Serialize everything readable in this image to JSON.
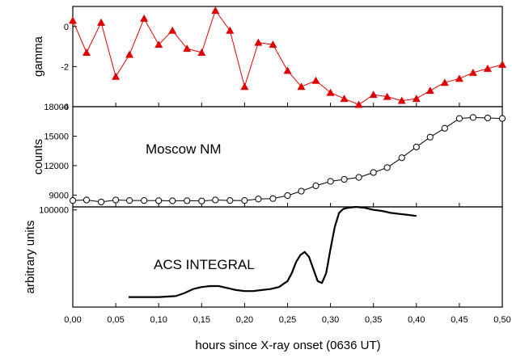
{
  "xlabel": "hours since X-ray onset (0636 UT)",
  "x_ticks": [
    "0,00",
    "0,05",
    "0,10",
    "0,15",
    "0,20",
    "0,25",
    "0,30",
    "0,35",
    "0,40",
    "0,45",
    "0,50"
  ],
  "chart_data": [
    {
      "type": "line",
      "id": "gamma",
      "ylabel": "gamma",
      "xlim": [
        0,
        0.5
      ],
      "ylim": [
        -4,
        1
      ],
      "y_ticks": [
        "0",
        "-2",
        "-4"
      ],
      "marker": "triangle",
      "color": "#e00000",
      "x": [
        0.0,
        0.016,
        0.033,
        0.05,
        0.066,
        0.083,
        0.1,
        0.116,
        0.133,
        0.15,
        0.166,
        0.183,
        0.2,
        0.216,
        0.233,
        0.25,
        0.266,
        0.283,
        0.3,
        0.316,
        0.333,
        0.35,
        0.366,
        0.383,
        0.4,
        0.416,
        0.433,
        0.45,
        0.466,
        0.483,
        0.5
      ],
      "y": [
        0.3,
        -1.3,
        0.2,
        -2.5,
        -1.4,
        0.4,
        -0.9,
        -0.2,
        -1.1,
        -1.3,
        0.8,
        -0.2,
        -3.0,
        -0.8,
        -0.9,
        -2.2,
        -3.0,
        -2.7,
        -3.3,
        -3.6,
        -3.9,
        -3.4,
        -3.5,
        -3.7,
        -3.6,
        -3.2,
        -2.8,
        -2.6,
        -2.3,
        -2.1,
        -1.9
      ]
    },
    {
      "type": "line",
      "id": "counts",
      "ylabel": "counts",
      "annotation": "Moscow NM",
      "xlim": [
        0,
        0.5
      ],
      "ylim": [
        7800,
        18000
      ],
      "y_ticks": [
        "9000",
        "12000",
        "15000",
        "18000"
      ],
      "y_tick_values": [
        9000,
        12000,
        15000,
        18000
      ],
      "marker": "open-circle",
      "color": "#000000",
      "x": [
        0.0,
        0.016,
        0.033,
        0.05,
        0.066,
        0.083,
        0.1,
        0.116,
        0.133,
        0.15,
        0.166,
        0.183,
        0.2,
        0.216,
        0.233,
        0.25,
        0.266,
        0.283,
        0.3,
        0.316,
        0.333,
        0.35,
        0.366,
        0.383,
        0.4,
        0.416,
        0.433,
        0.45,
        0.466,
        0.483,
        0.5
      ],
      "y": [
        8450,
        8500,
        8300,
        8500,
        8450,
        8450,
        8430,
        8420,
        8430,
        8400,
        8500,
        8450,
        8450,
        8600,
        8650,
        8950,
        9400,
        9950,
        10400,
        10600,
        10800,
        11300,
        11800,
        12800,
        13900,
        14900,
        15800,
        16800,
        16900,
        16850,
        16800
      ]
    },
    {
      "type": "line",
      "id": "acs",
      "ylabel": "arbitrary units",
      "annotation": "ACS INTEGRAL",
      "xlim": [
        0,
        0.5
      ],
      "ylim": [
        0,
        100
      ],
      "y_ticks": [
        "100000"
      ],
      "y_tick_values": [
        97
      ],
      "marker": "none",
      "color": "#000000",
      "x": [
        0.065,
        0.08,
        0.1,
        0.12,
        0.13,
        0.14,
        0.15,
        0.16,
        0.17,
        0.18,
        0.19,
        0.2,
        0.21,
        0.22,
        0.23,
        0.24,
        0.25,
        0.255,
        0.26,
        0.265,
        0.27,
        0.275,
        0.28,
        0.285,
        0.29,
        0.295,
        0.3,
        0.305,
        0.31,
        0.315,
        0.32,
        0.33,
        0.34,
        0.35,
        0.36,
        0.37,
        0.38,
        0.39,
        0.4
      ],
      "y": [
        10,
        10,
        10,
        11,
        14,
        18,
        20,
        21,
        21,
        19,
        17,
        16,
        16,
        17,
        18,
        20,
        26,
        34,
        45,
        52,
        55,
        50,
        38,
        26,
        24,
        34,
        58,
        80,
        94,
        98,
        99,
        100,
        99,
        97,
        96,
        94,
        93,
        92,
        91
      ]
    }
  ]
}
